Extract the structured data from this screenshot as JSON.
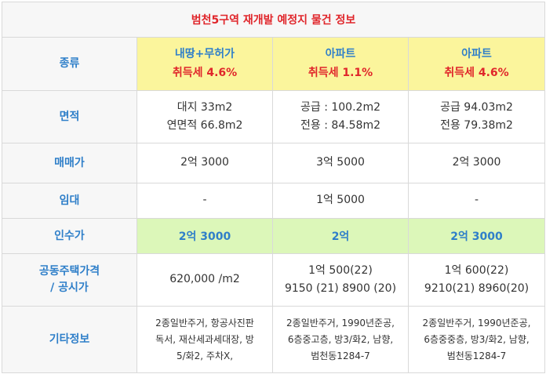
{
  "title": "범천5구역 재개발 예정지 물건 정보",
  "rows": {
    "type": {
      "label": "종류",
      "cols": [
        {
          "type": "내땅+무허가",
          "tax": "취득세 4.6%"
        },
        {
          "type": "아파트",
          "tax": "취득세 1.1%"
        },
        {
          "type": "아파트",
          "tax": "취득세 4.6%"
        }
      ]
    },
    "area": {
      "label": "면적",
      "cols": [
        {
          "line1": "대지 33m2",
          "line2": "연면적 66.8m2"
        },
        {
          "line1": "공급 : 100.2m2",
          "line2": "전용 : 84.58m2"
        },
        {
          "line1": "공급 94.03m2",
          "line2": "전용 79.38m2"
        }
      ]
    },
    "sale": {
      "label": "매매가",
      "cols": [
        "2억 3000",
        "3억 5000",
        "2억 3000"
      ]
    },
    "lease": {
      "label": "임대",
      "cols": [
        "-",
        "1억 5000",
        "-"
      ]
    },
    "acquisition": {
      "label": "인수가",
      "cols": [
        "2억 3000",
        "2억",
        "2억 3000"
      ]
    },
    "price": {
      "label_line1": "공동주택가격",
      "label_line2": "/ 공시가",
      "cols": [
        {
          "line1": "620,000 /m2",
          "line2": ""
        },
        {
          "line1": "1억 500(22)",
          "line2": "9150 (21) 8900 (20)"
        },
        {
          "line1": "1억 600(22)",
          "line2": "9210(21) 8960(20)"
        }
      ]
    },
    "etc": {
      "label": "기타정보",
      "cols": [
        {
          "line1": "2종일반주거, 항공사진판",
          "line2": "독서, 재산세과세대장, 방",
          "line3": "5/화2, 주차X,"
        },
        {
          "line1": "2종일반주거, 1990년준공,",
          "line2": "6층중고층, 방3/화2, 남향,",
          "line3": "범천동1284-7"
        },
        {
          "line1": "2종일반주거, 1990년준공,",
          "line2": "6층중중층, 방3/화2, 남향,",
          "line3": "범천동1284-7"
        }
      ]
    }
  }
}
